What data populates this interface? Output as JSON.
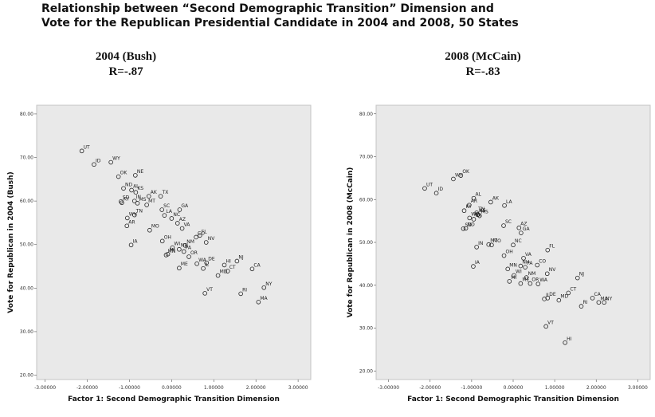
{
  "page_title": {
    "line1": "Relationship between “Second Demographic Transition” Dimension and",
    "line2": "Vote for the Republican Presidential Candidate in 2004 and 2008, 50 States"
  },
  "chart_data": [
    {
      "type": "scatter",
      "heading": "2004 (Bush)",
      "correlation": "R=-.87",
      "xlabel": "Factor 1: Second Demographic Transition Dimension",
      "ylabel": "Vote for Republican in 2004 (Bush)",
      "xlim": [
        -3.2,
        3.3
      ],
      "ylim": [
        19.0,
        82.0
      ],
      "x_ticks": [
        "-3.00000",
        "-2.00000",
        "-1.00000",
        "0.00000",
        "1.00000",
        "2.00000",
        "3.00000"
      ],
      "x_tick_values": [
        -3,
        -2,
        -1,
        0,
        1,
        2,
        3
      ],
      "y_ticks": [
        "20.00",
        "30.00",
        "40.00",
        "50.00",
        "60.00",
        "70.00",
        "80.00"
      ],
      "y_tick_values": [
        20,
        30,
        40,
        50,
        60,
        70,
        80
      ],
      "grid": false,
      "points": [
        {
          "label": "UT",
          "x": -2.13,
          "y": 71.5
        },
        {
          "label": "ID",
          "x": -1.84,
          "y": 68.4
        },
        {
          "label": "WY",
          "x": -1.44,
          "y": 68.9
        },
        {
          "label": "OK",
          "x": -1.26,
          "y": 65.6
        },
        {
          "label": "NE",
          "x": -0.86,
          "y": 65.9
        },
        {
          "label": "ND",
          "x": -1.14,
          "y": 62.9
        },
        {
          "label": "KS",
          "x": -0.85,
          "y": 62.0
        },
        {
          "label": "AK",
          "x": -0.54,
          "y": 61.1
        },
        {
          "label": "TX",
          "x": -0.26,
          "y": 61.1
        },
        {
          "label": "SD",
          "x": -1.2,
          "y": 59.9
        },
        {
          "label": "AL",
          "x": -0.95,
          "y": 62.5
        },
        {
          "label": "IN",
          "x": -0.88,
          "y": 60.0
        },
        {
          "label": "KY",
          "x": -1.18,
          "y": 59.6
        },
        {
          "label": "WV",
          "x": -1.05,
          "y": 56.1
        },
        {
          "label": "MS",
          "x": -0.81,
          "y": 59.5
        },
        {
          "label": "MT",
          "x": -0.59,
          "y": 59.1
        },
        {
          "label": "TN",
          "x": -0.88,
          "y": 56.8
        },
        {
          "label": "MO",
          "x": -0.52,
          "y": 53.3
        },
        {
          "label": "LA",
          "x": -0.17,
          "y": 56.7
        },
        {
          "label": "SC",
          "x": -0.23,
          "y": 58.0
        },
        {
          "label": "GA",
          "x": 0.19,
          "y": 58.0
        },
        {
          "label": "AZ",
          "x": 0.14,
          "y": 54.9
        },
        {
          "label": "NC",
          "x": 0.0,
          "y": 56.0
        },
        {
          "label": "AR",
          "x": -1.06,
          "y": 54.3
        },
        {
          "label": "IA",
          "x": -0.96,
          "y": 49.9
        },
        {
          "label": "OH",
          "x": -0.22,
          "y": 50.8
        },
        {
          "label": "VA",
          "x": 0.25,
          "y": 53.7
        },
        {
          "label": "CO",
          "x": 0.58,
          "y": 51.7
        },
        {
          "label": "NV",
          "x": 0.82,
          "y": 50.5
        },
        {
          "label": "FL",
          "x": 0.67,
          "y": 52.1
        },
        {
          "label": "WI",
          "x": 0.02,
          "y": 49.3
        },
        {
          "label": "NM",
          "x": 0.32,
          "y": 49.8
        },
        {
          "label": "MI",
          "x": -0.09,
          "y": 47.8
        },
        {
          "label": "PA",
          "x": 0.29,
          "y": 48.4
        },
        {
          "label": "OR",
          "x": 0.41,
          "y": 47.2
        },
        {
          "label": "WA",
          "x": 0.6,
          "y": 45.6
        },
        {
          "label": "DE",
          "x": 0.83,
          "y": 45.8
        },
        {
          "label": "MN",
          "x": -0.13,
          "y": 47.6
        },
        {
          "label": "NH",
          "x": 0.18,
          "y": 48.9
        },
        {
          "label": "ME",
          "x": 0.18,
          "y": 44.6
        },
        {
          "label": "HI",
          "x": 1.25,
          "y": 45.3
        },
        {
          "label": "NJ",
          "x": 1.55,
          "y": 46.2
        },
        {
          "label": "IL",
          "x": 0.75,
          "y": 44.5
        },
        {
          "label": "VT",
          "x": 0.79,
          "y": 38.8
        },
        {
          "label": "MD",
          "x": 1.1,
          "y": 42.9
        },
        {
          "label": "CT",
          "x": 1.33,
          "y": 43.9
        },
        {
          "label": "RI",
          "x": 1.64,
          "y": 38.7
        },
        {
          "label": "CA",
          "x": 1.91,
          "y": 44.4
        },
        {
          "label": "NY",
          "x": 2.19,
          "y": 40.1
        },
        {
          "label": "MA",
          "x": 2.06,
          "y": 36.8
        }
      ]
    },
    {
      "type": "scatter",
      "heading": "2008 (McCain)",
      "correlation": "R=-.83",
      "xlabel": "Factor 1: Second Demographic Transition Dimension",
      "ylabel": "Vote for Republican in 2008 (McCain)",
      "xlim": [
        -3.3,
        3.3
      ],
      "ylim": [
        18.0,
        82.0
      ],
      "x_ticks": [
        "-3.00000",
        "-2.00000",
        "-1.00000",
        "0.00000",
        "1.00000",
        "2.00000",
        "3.00000"
      ],
      "x_tick_values": [
        -3,
        -2,
        -1,
        0,
        1,
        2,
        3
      ],
      "y_ticks": [
        "20.00",
        "30.00",
        "40.00",
        "50.00",
        "60.00",
        "70.00",
        "80.00"
      ],
      "y_tick_values": [
        20,
        30,
        40,
        50,
        60,
        70,
        80
      ],
      "grid": false,
      "points": [
        {
          "label": "UT",
          "x": -2.13,
          "y": 62.6
        },
        {
          "label": "ID",
          "x": -1.85,
          "y": 61.5
        },
        {
          "label": "WY",
          "x": -1.44,
          "y": 64.8
        },
        {
          "label": "OK",
          "x": -1.26,
          "y": 65.6
        },
        {
          "label": "AL",
          "x": -0.95,
          "y": 60.3
        },
        {
          "label": "AK",
          "x": -0.54,
          "y": 59.4
        },
        {
          "label": "AR",
          "x": -1.06,
          "y": 58.7
        },
        {
          "label": "KY",
          "x": -1.18,
          "y": 57.4
        },
        {
          "label": "LA",
          "x": -0.21,
          "y": 58.6
        },
        {
          "label": "KS",
          "x": -0.85,
          "y": 56.5
        },
        {
          "label": "TN",
          "x": -0.88,
          "y": 56.9
        },
        {
          "label": "WV",
          "x": -1.05,
          "y": 55.7
        },
        {
          "label": "NE",
          "x": -0.86,
          "y": 56.5
        },
        {
          "label": "MS",
          "x": -0.81,
          "y": 56.2
        },
        {
          "label": "ND",
          "x": -1.14,
          "y": 53.3
        },
        {
          "label": "TX",
          "x": -0.95,
          "y": 55.4
        },
        {
          "label": "SC",
          "x": -0.23,
          "y": 53.9
        },
        {
          "label": "AZ",
          "x": 0.14,
          "y": 53.4
        },
        {
          "label": "GA",
          "x": 0.19,
          "y": 52.2
        },
        {
          "label": "SD",
          "x": -1.2,
          "y": 53.2
        },
        {
          "label": "MT",
          "x": -0.59,
          "y": 49.5
        },
        {
          "label": "MO",
          "x": -0.52,
          "y": 49.4
        },
        {
          "label": "IN",
          "x": -0.88,
          "y": 48.9
        },
        {
          "label": "NC",
          "x": 0.0,
          "y": 49.4
        },
        {
          "label": "FL",
          "x": 0.83,
          "y": 48.2
        },
        {
          "label": "VA",
          "x": 0.25,
          "y": 46.3
        },
        {
          "label": "IA",
          "x": -0.96,
          "y": 44.4
        },
        {
          "label": "OH",
          "x": -0.22,
          "y": 46.9
        },
        {
          "label": "NH",
          "x": 0.18,
          "y": 44.5
        },
        {
          "label": "CO",
          "x": 0.58,
          "y": 44.7
        },
        {
          "label": "MN",
          "x": -0.13,
          "y": 43.8
        },
        {
          "label": "NV",
          "x": 0.82,
          "y": 42.7
        },
        {
          "label": "NJ",
          "x": 1.55,
          "y": 41.7
        },
        {
          "label": "WI",
          "x": 0.02,
          "y": 42.3
        },
        {
          "label": "MI",
          "x": -0.09,
          "y": 40.9
        },
        {
          "label": "PA",
          "x": 0.29,
          "y": 44.2
        },
        {
          "label": "WA",
          "x": 0.6,
          "y": 40.3
        },
        {
          "label": "ME",
          "x": 0.18,
          "y": 40.4
        },
        {
          "label": "NM",
          "x": 0.32,
          "y": 41.8
        },
        {
          "label": "CT",
          "x": 1.33,
          "y": 38.2
        },
        {
          "label": "DE",
          "x": 0.83,
          "y": 37.0
        },
        {
          "label": "OR",
          "x": 0.41,
          "y": 40.4
        },
        {
          "label": "IL",
          "x": 0.75,
          "y": 36.8
        },
        {
          "label": "MD",
          "x": 1.1,
          "y": 36.5
        },
        {
          "label": "CA",
          "x": 1.91,
          "y": 37.0
        },
        {
          "label": "RI",
          "x": 1.64,
          "y": 35.1
        },
        {
          "label": "NY",
          "x": 2.19,
          "y": 36.0
        },
        {
          "label": "MA",
          "x": 2.06,
          "y": 36.0
        },
        {
          "label": "VT",
          "x": 0.79,
          "y": 30.4
        },
        {
          "label": "HI",
          "x": 1.25,
          "y": 26.6
        }
      ]
    }
  ]
}
